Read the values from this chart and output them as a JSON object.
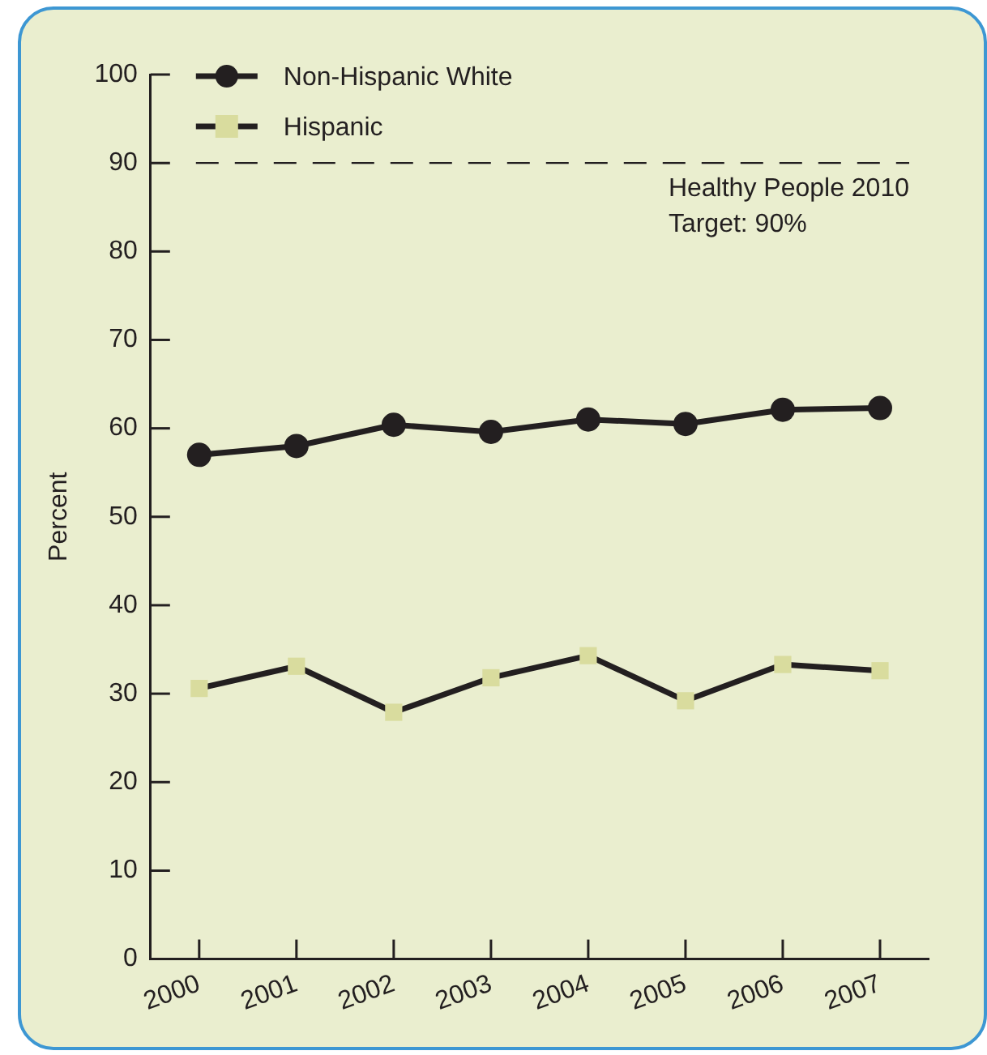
{
  "chart_data": {
    "type": "line",
    "ylabel": "Percent",
    "categories": [
      "2000",
      "2001",
      "2002",
      "2003",
      "2004",
      "2005",
      "2006",
      "2007"
    ],
    "series": [
      {
        "name": "Non-Hispanic White",
        "color": "#231f20",
        "marker": "circle",
        "values": [
          57,
          58,
          60.4,
          59.6,
          61,
          60.5,
          62.1,
          62.3
        ]
      },
      {
        "name": "Hispanic",
        "color": "#d9dc9e",
        "marker": "square",
        "values": [
          30.6,
          33.1,
          27.9,
          31.8,
          34.3,
          29.2,
          33.3,
          32.6
        ]
      }
    ],
    "ylim": [
      0,
      100
    ],
    "yticks": [
      0,
      10,
      20,
      30,
      40,
      50,
      60,
      70,
      80,
      90,
      100
    ],
    "grid": false,
    "legend": "top left",
    "ref_lines": [
      {
        "axis": "y",
        "value": 90,
        "label": "Healthy People 2010 Target: 90%",
        "line_style": "dashed"
      }
    ]
  }
}
